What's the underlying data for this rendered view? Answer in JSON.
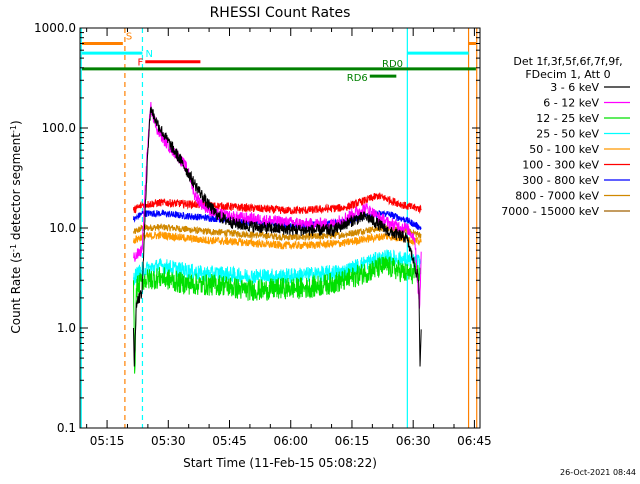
{
  "chart_data": {
    "type": "line",
    "title": "RHESSI Count Rates",
    "xlabel": "Start Time (11-Feb-15 05:08:22)",
    "ylabel_parts": [
      "Count Rate (s",
      "-1",
      " detector segment",
      "-1",
      ")"
    ],
    "yscale": "log",
    "ylim": [
      0.1,
      1000
    ],
    "y_ticks": [
      0.1,
      1,
      10,
      100,
      1000
    ],
    "y_tick_labels": [
      "0.1",
      "1.0",
      "10.0",
      "100.0",
      "1000.0"
    ],
    "xlim_minutes": [
      0,
      98
    ],
    "x_ticks_minutes": [
      6.63,
      21.63,
      36.63,
      51.63,
      66.63,
      81.63,
      96.63
    ],
    "x_tick_labels": [
      "05:15",
      "05:30",
      "05:45",
      "06:00",
      "06:15",
      "06:30",
      "06:45"
    ],
    "footer_date": "26-Oct-2021 08:44",
    "legend": {
      "placement": "right",
      "header": [
        "Det 1f,3f,5f,6f,7f,9f,",
        "FDecim 1, Att 0"
      ],
      "entries": [
        {
          "label": "3 - 6 keV",
          "color": "#000000"
        },
        {
          "label": "6 - 12 keV",
          "color": "#ff00ff"
        },
        {
          "label": "12 - 25 keV",
          "color": "#00e000"
        },
        {
          "label": "25 - 50 keV",
          "color": "#00ffff"
        },
        {
          "label": "50 - 100 keV",
          "color": "#ff9900"
        },
        {
          "label": "100 - 300 keV",
          "color": "#ff0000"
        },
        {
          "label": "300 - 800 keV",
          "color": "#0000ff"
        },
        {
          "label": "800 - 7000 keV",
          "color": "#d08800"
        },
        {
          "label": "7000 - 15000 keV",
          "color": "#a06000"
        }
      ]
    },
    "flag_bars": [
      {
        "label": "S",
        "color": "#ff8000",
        "y": 700,
        "segments": [
          [
            0.5,
            10.5
          ],
          [
            95.2,
            97
          ]
        ]
      },
      {
        "label": "N",
        "color": "#00ffff",
        "y": 560,
        "segments": [
          [
            0.5,
            15.3
          ],
          [
            80.2,
            95.2
          ]
        ]
      },
      {
        "label": "F",
        "color": "#ff0000",
        "y": 460,
        "segments": [
          [
            16,
            29.5
          ]
        ]
      },
      {
        "label": "RD0",
        "color": "#008000",
        "y": 390,
        "segments": [
          [
            0.5,
            97
          ]
        ]
      },
      {
        "label": "RD6",
        "color": "#008000",
        "y": 330,
        "segments": [
          [
            71,
            77.5
          ]
        ]
      }
    ],
    "vlines": [
      {
        "x": 0.3,
        "color": "#00ffff",
        "style": "solid"
      },
      {
        "x": 11.0,
        "color": "#ff8000",
        "style": "dashed"
      },
      {
        "x": 15.3,
        "color": "#00ffff",
        "style": "dashed"
      },
      {
        "x": 80.2,
        "color": "#00ffff",
        "style": "solid"
      },
      {
        "x": 95.2,
        "color": "#ff8000",
        "style": "solid"
      },
      {
        "x": 97.2,
        "color": "#ff8000",
        "style": "solid"
      }
    ],
    "data_range_minutes": [
      13.1,
      83.6
    ],
    "series": [
      {
        "name": "3 - 6 keV",
        "color": "#000000",
        "noise": 0.06,
        "points": [
          [
            13.1,
            1.0
          ],
          [
            13.3,
            0.4
          ],
          [
            13.8,
            1.8
          ],
          [
            15.2,
            2.3
          ],
          [
            16.5,
            50
          ],
          [
            17.3,
            160
          ],
          [
            18.5,
            120
          ],
          [
            21,
            80
          ],
          [
            25,
            45
          ],
          [
            28,
            28
          ],
          [
            31,
            18
          ],
          [
            34,
            13
          ],
          [
            38,
            11
          ],
          [
            45,
            10
          ],
          [
            55,
            9.5
          ],
          [
            62,
            9.5
          ],
          [
            67,
            12
          ],
          [
            70,
            13
          ],
          [
            73,
            11
          ],
          [
            76,
            9
          ],
          [
            80,
            8
          ],
          [
            81.5,
            5
          ],
          [
            82.5,
            3.5
          ],
          [
            83.0,
            3
          ],
          [
            83.3,
            0.4
          ],
          [
            83.6,
            1.0
          ]
        ]
      },
      {
        "name": "6 - 12 keV",
        "color": "#ff00ff",
        "noise": 0.06,
        "points": [
          [
            13.1,
            5
          ],
          [
            15.2,
            6
          ],
          [
            16.5,
            60
          ],
          [
            17.3,
            165
          ],
          [
            19,
            95
          ],
          [
            21,
            72
          ],
          [
            24,
            52
          ],
          [
            26.5,
            38
          ],
          [
            28,
            22
          ],
          [
            30,
            17
          ],
          [
            33,
            14
          ],
          [
            37,
            13
          ],
          [
            45,
            12
          ],
          [
            55,
            11
          ],
          [
            62,
            11
          ],
          [
            67,
            14
          ],
          [
            70,
            16
          ],
          [
            73,
            13
          ],
          [
            76,
            11
          ],
          [
            80,
            10
          ],
          [
            82,
            8
          ],
          [
            83.2,
            1.5
          ],
          [
            83.6,
            6
          ]
        ]
      },
      {
        "name": "12 - 25 keV",
        "color": "#00e000",
        "noise": 0.11,
        "points": [
          [
            13.1,
            3
          ],
          [
            13.4,
            0.3
          ],
          [
            13.8,
            2.5
          ],
          [
            15.2,
            3
          ],
          [
            20,
            3.2
          ],
          [
            25,
            2.8
          ],
          [
            30,
            2.7
          ],
          [
            35,
            2.7
          ],
          [
            40,
            2.4
          ],
          [
            45,
            2.4
          ],
          [
            50,
            2.5
          ],
          [
            55,
            2.5
          ],
          [
            60,
            2.7
          ],
          [
            65,
            3
          ],
          [
            70,
            3.6
          ],
          [
            75,
            4.2
          ],
          [
            80,
            3.5
          ],
          [
            83.5,
            3.5
          ]
        ]
      },
      {
        "name": "25 - 50 keV",
        "color": "#00ffff",
        "noise": 0.08,
        "points": [
          [
            13.1,
            3.2
          ],
          [
            15.2,
            3.8
          ],
          [
            20,
            4.2
          ],
          [
            25,
            3.8
          ],
          [
            30,
            3.5
          ],
          [
            35,
            3.5
          ],
          [
            40,
            3.3
          ],
          [
            45,
            3.3
          ],
          [
            50,
            3.3
          ],
          [
            55,
            3.4
          ],
          [
            60,
            3.5
          ],
          [
            65,
            3.7
          ],
          [
            70,
            4.5
          ],
          [
            75,
            5.1
          ],
          [
            80,
            4.8
          ],
          [
            83.5,
            4.5
          ]
        ]
      },
      {
        "name": "50 - 100 keV",
        "color": "#ff9900",
        "noise": 0.04,
        "points": [
          [
            13.1,
            7.5
          ],
          [
            15.2,
            8.2
          ],
          [
            20,
            8.5
          ],
          [
            25,
            8.0
          ],
          [
            30,
            7.6
          ],
          [
            35,
            7.4
          ],
          [
            40,
            7.2
          ],
          [
            45,
            6.9
          ],
          [
            50,
            6.7
          ],
          [
            55,
            6.7
          ],
          [
            60,
            6.9
          ],
          [
            65,
            7.1
          ],
          [
            70,
            7.8
          ],
          [
            75,
            8.3
          ],
          [
            80,
            7.8
          ],
          [
            83.6,
            7.2
          ]
        ]
      },
      {
        "name": "100 - 300 keV",
        "color": "#ff0000",
        "noise": 0.04,
        "points": [
          [
            13.1,
            15
          ],
          [
            15.2,
            17
          ],
          [
            20,
            18
          ],
          [
            25,
            17.5
          ],
          [
            30,
            17
          ],
          [
            35,
            16.5
          ],
          [
            40,
            16
          ],
          [
            45,
            15.5
          ],
          [
            50,
            15
          ],
          [
            55,
            15
          ],
          [
            60,
            15.5
          ],
          [
            65,
            16
          ],
          [
            70,
            19
          ],
          [
            73,
            21
          ],
          [
            76,
            19
          ],
          [
            80,
            16.5
          ],
          [
            83.6,
            15.5
          ]
        ]
      },
      {
        "name": "300 - 800 keV",
        "color": "#0000ff",
        "noise": 0.035,
        "points": [
          [
            13.1,
            12
          ],
          [
            15.2,
            14
          ],
          [
            20,
            14
          ],
          [
            25,
            13.3
          ],
          [
            30,
            12.8
          ],
          [
            35,
            12.2
          ],
          [
            40,
            11.5
          ],
          [
            45,
            11
          ],
          [
            50,
            10.6
          ],
          [
            55,
            10.6
          ],
          [
            60,
            11
          ],
          [
            65,
            11.5
          ],
          [
            70,
            13.5
          ],
          [
            75,
            14
          ],
          [
            80,
            12
          ],
          [
            83.6,
            10
          ]
        ]
      },
      {
        "name": "800 - 7000 keV",
        "color": "#d08800",
        "noise": 0.035,
        "points": [
          [
            13.1,
            9
          ],
          [
            15.2,
            10
          ],
          [
            20,
            10.2
          ],
          [
            25,
            9.8
          ],
          [
            30,
            9.3
          ],
          [
            35,
            9
          ],
          [
            40,
            8.7
          ],
          [
            45,
            8.4
          ],
          [
            50,
            8.1
          ],
          [
            55,
            8.1
          ],
          [
            60,
            8.3
          ],
          [
            65,
            8.6
          ],
          [
            70,
            9.5
          ],
          [
            75,
            10
          ],
          [
            80,
            9.3
          ],
          [
            83.6,
            8.5
          ]
        ]
      }
    ]
  }
}
